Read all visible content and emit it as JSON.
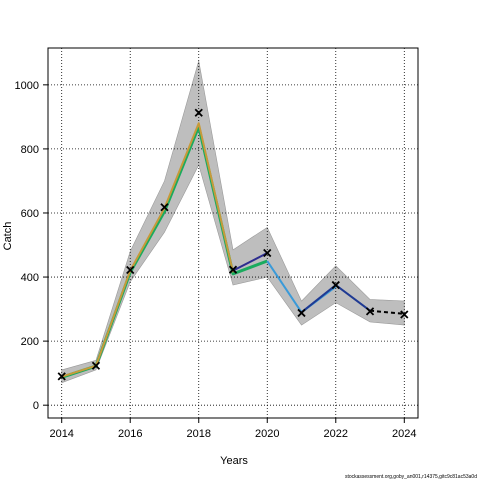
{
  "chart_data": {
    "type": "line",
    "xlabel": "Years",
    "ylabel": "Catch",
    "xlim": [
      2013.6,
      2024.4
    ],
    "ylim": [
      -40,
      1115
    ],
    "x_ticks": [
      2014,
      2016,
      2018,
      2020,
      2022,
      2024
    ],
    "y_ticks": [
      0,
      200,
      400,
      600,
      800,
      1000
    ],
    "x_tick_labels": [
      "2014",
      "2016",
      "2018",
      "2020",
      "2022",
      "2024"
    ],
    "y_tick_labels": [
      "0",
      "200",
      "400",
      "600",
      "800",
      "1000"
    ],
    "grid": true,
    "legend": "none",
    "footnote": "stockassessment.org,goby_an001,r14375,gitc9c81ac53a0d",
    "band": {
      "x": [
        2014,
        2015,
        2016,
        2017,
        2018,
        2019,
        2020,
        2021,
        2022,
        2023,
        2024
      ],
      "lower": [
        70,
        110,
        385,
        540,
        750,
        375,
        400,
        250,
        320,
        260,
        250
      ],
      "upper": [
        110,
        140,
        480,
        700,
        1075,
        485,
        555,
        325,
        435,
        330,
        325
      ]
    },
    "series": [
      {
        "x": [
          2014,
          2015,
          2016,
          2017,
          2018,
          2019,
          2020
        ],
        "values": [
          87,
          122,
          415,
          605,
          870,
          410,
          450
        ],
        "color": "#1aab5e",
        "width": 3
      },
      {
        "x": [
          2014,
          2015,
          2016,
          2017,
          2018,
          2019
        ],
        "values": [
          89,
          123,
          420,
          615,
          880,
          415
        ],
        "color": "#c79a3a",
        "width": 2
      },
      {
        "x": [
          2019,
          2020
        ],
        "values": [
          420,
          475
        ],
        "color": "#2d2d8f",
        "width": 2
      },
      {
        "x": [
          2020,
          2021,
          2022
        ],
        "values": [
          450,
          290,
          370
        ],
        "color": "#3a9ad9",
        "width": 2
      },
      {
        "x": [
          2021,
          2022,
          2023
        ],
        "values": [
          290,
          375,
          295
        ],
        "color": "#1f3a93",
        "width": 2
      },
      {
        "x": [
          2023,
          2024
        ],
        "values": [
          295,
          285
        ],
        "color": "#000000",
        "width": 2,
        "dash": "4,3"
      }
    ],
    "observed": {
      "x": [
        2014,
        2015,
        2016,
        2017,
        2018,
        2019,
        2020,
        2021,
        2022,
        2023,
        2024
      ],
      "values": [
        90,
        123,
        422,
        618,
        913,
        423,
        475,
        288,
        375,
        293,
        283
      ]
    },
    "colors": {
      "band": "#bebebe",
      "band_edge": "#9a9a9a",
      "grid": "#000000"
    }
  }
}
